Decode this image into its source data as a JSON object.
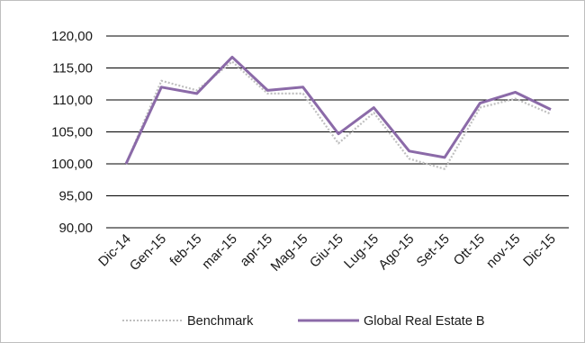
{
  "chart_data": {
    "type": "line",
    "categories": [
      "Dic-14",
      "Gen-15",
      "feb-15",
      "mar-15",
      "apr-15",
      "Mag-15",
      "Giu-15",
      "Lug-15",
      "Ago-15",
      "Set-15",
      "Ott-15",
      "nov-15",
      "Dic-15"
    ],
    "series": [
      {
        "name": "Benchmark",
        "color": "#bfbfbf",
        "style": "dotted",
        "values": [
          100.0,
          113.0,
          111.5,
          116.0,
          111.0,
          111.0,
          103.2,
          108.0,
          100.8,
          99.2,
          108.8,
          110.2,
          107.8
        ]
      },
      {
        "name": "Global Real Estate B",
        "color": "#8b6aa8",
        "style": "solid",
        "values": [
          100.0,
          112.0,
          111.0,
          116.7,
          111.5,
          112.0,
          104.7,
          108.8,
          102.0,
          101.0,
          109.5,
          111.2,
          108.5
        ]
      }
    ],
    "yticks": [
      "120,00",
      "115,00",
      "110,00",
      "105,00",
      "100,00",
      "95,00",
      "90,00"
    ],
    "ylim": [
      90,
      120
    ],
    "grid": true,
    "legend": "bottom"
  }
}
